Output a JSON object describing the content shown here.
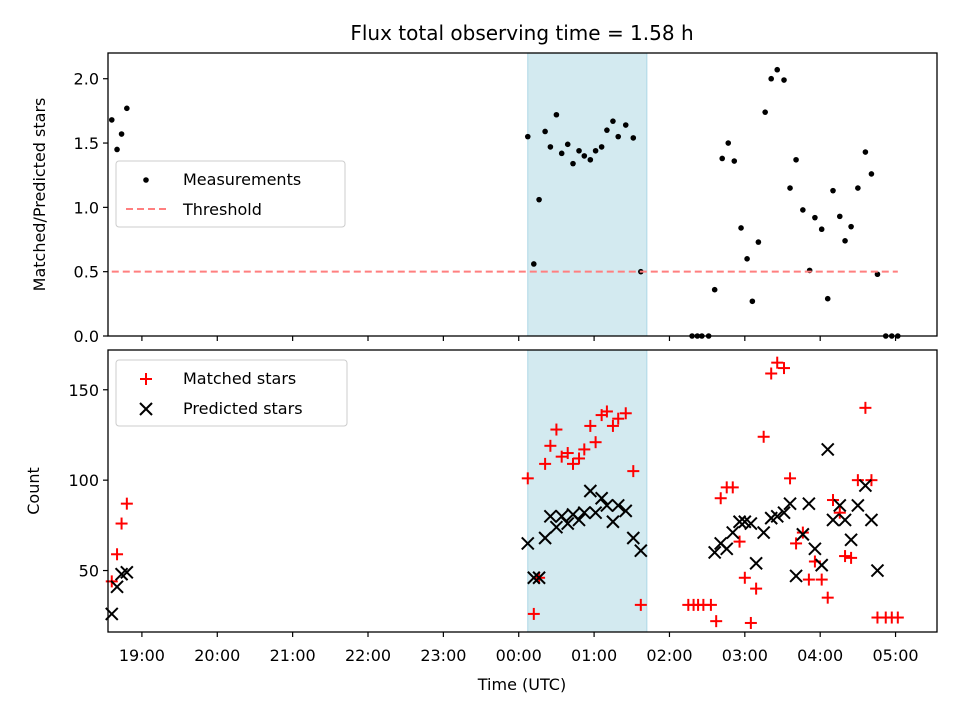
{
  "chart_data": [
    {
      "type": "scatter",
      "title": "Flux total observing time = 1.58 h",
      "xlabel": "",
      "ylabel": "Matched/Predicted stars",
      "ylim": [
        0,
        2.2
      ],
      "yticks": [
        0.0,
        0.5,
        1.0,
        1.5,
        2.0
      ],
      "ytick_labels": [
        "0.0",
        "0.5",
        "1.0",
        "1.5",
        "2.0"
      ],
      "x_unit": "hours since 00:00 UTC",
      "xlim": [
        -5.45,
        5.55
      ],
      "shaded_interval": [
        0.12,
        1.7
      ],
      "shaded_color": "#d3eaf0",
      "legend": {
        "position": "center-left",
        "entries": [
          "Measurements",
          "Threshold"
        ]
      },
      "series": [
        {
          "name": "Measurements",
          "style": "point",
          "color": "#000000",
          "points": [
            [
              -5.4,
              1.68
            ],
            [
              -5.33,
              1.45
            ],
            [
              -5.27,
              1.57
            ],
            [
              -5.2,
              1.77
            ],
            [
              0.12,
              1.55
            ],
            [
              0.2,
              0.56
            ],
            [
              0.27,
              1.06
            ],
            [
              0.35,
              1.59
            ],
            [
              0.42,
              1.47
            ],
            [
              0.5,
              1.72
            ],
            [
              0.57,
              1.42
            ],
            [
              0.65,
              1.49
            ],
            [
              0.72,
              1.34
            ],
            [
              0.8,
              1.44
            ],
            [
              0.87,
              1.4
            ],
            [
              0.95,
              1.37
            ],
            [
              1.02,
              1.44
            ],
            [
              1.1,
              1.47
            ],
            [
              1.17,
              1.6
            ],
            [
              1.25,
              1.67
            ],
            [
              1.32,
              1.55
            ],
            [
              1.42,
              1.64
            ],
            [
              1.52,
              1.54
            ],
            [
              1.62,
              0.5
            ],
            [
              2.3,
              0.0
            ],
            [
              2.37,
              0.0
            ],
            [
              2.43,
              0.0
            ],
            [
              2.52,
              0.0
            ],
            [
              2.6,
              0.36
            ],
            [
              2.7,
              1.38
            ],
            [
              2.78,
              1.5
            ],
            [
              2.86,
              1.36
            ],
            [
              2.95,
              0.84
            ],
            [
              3.03,
              0.6
            ],
            [
              3.1,
              0.27
            ],
            [
              3.18,
              0.73
            ],
            [
              3.27,
              1.74
            ],
            [
              3.35,
              2.0
            ],
            [
              3.43,
              2.07
            ],
            [
              3.52,
              1.99
            ],
            [
              3.6,
              1.15
            ],
            [
              3.68,
              1.37
            ],
            [
              3.77,
              0.98
            ],
            [
              3.86,
              0.51
            ],
            [
              3.93,
              0.92
            ],
            [
              4.02,
              0.83
            ],
            [
              4.1,
              0.29
            ],
            [
              4.17,
              1.13
            ],
            [
              4.26,
              0.93
            ],
            [
              4.33,
              0.74
            ],
            [
              4.41,
              0.85
            ],
            [
              4.5,
              1.15
            ],
            [
              4.6,
              1.43
            ],
            [
              4.68,
              1.26
            ],
            [
              4.76,
              0.48
            ],
            [
              4.87,
              0.0
            ],
            [
              4.95,
              0.0
            ],
            [
              5.03,
              0.0
            ]
          ]
        },
        {
          "name": "Threshold",
          "style": "dashed-line",
          "color": "#ff7f7f",
          "x": [
            -5.4,
            5.03
          ],
          "y": [
            0.5,
            0.5
          ]
        }
      ]
    },
    {
      "type": "scatter",
      "xlabel": "Time (UTC)",
      "ylabel": "Count",
      "ylim": [
        16,
        172
      ],
      "yticks": [
        50,
        100,
        150
      ],
      "ytick_labels": [
        "50",
        "100",
        "150"
      ],
      "x_unit": "hours since 00:00 UTC",
      "xlim": [
        -5.45,
        5.55
      ],
      "xticks": [
        -5,
        -4,
        -3,
        -2,
        -1,
        0,
        1,
        2,
        3,
        4,
        5
      ],
      "xtick_labels": [
        "19:00",
        "20:00",
        "21:00",
        "22:00",
        "23:00",
        "00:00",
        "01:00",
        "02:00",
        "03:00",
        "04:00",
        "05:00"
      ],
      "shaded_interval": [
        0.12,
        1.7
      ],
      "shaded_color": "#d3eaf0",
      "legend": {
        "position": "top-left",
        "entries": [
          "Matched stars",
          "Predicted stars"
        ]
      },
      "series": [
        {
          "name": "Matched stars",
          "style": "plus",
          "color": "#ff0000",
          "points": [
            [
              -5.4,
              44
            ],
            [
              -5.33,
              59
            ],
            [
              -5.27,
              76
            ],
            [
              -5.2,
              87
            ],
            [
              0.12,
              101
            ],
            [
              0.2,
              26
            ],
            [
              0.27,
              46
            ],
            [
              0.35,
              109
            ],
            [
              0.42,
              119
            ],
            [
              0.5,
              128
            ],
            [
              0.57,
              113
            ],
            [
              0.65,
              115
            ],
            [
              0.72,
              109
            ],
            [
              0.8,
              112
            ],
            [
              0.87,
              117
            ],
            [
              0.95,
              130
            ],
            [
              1.02,
              121
            ],
            [
              1.1,
              136
            ],
            [
              1.17,
              138
            ],
            [
              1.25,
              130
            ],
            [
              1.32,
              134
            ],
            [
              1.42,
              137
            ],
            [
              1.52,
              105
            ],
            [
              1.62,
              31
            ],
            [
              2.25,
              31
            ],
            [
              2.32,
              31
            ],
            [
              2.38,
              31
            ],
            [
              2.45,
              31
            ],
            [
              2.55,
              31
            ],
            [
              2.62,
              22
            ],
            [
              2.68,
              90
            ],
            [
              2.76,
              96
            ],
            [
              2.84,
              96
            ],
            [
              2.93,
              66
            ],
            [
              3.0,
              46
            ],
            [
              3.08,
              21
            ],
            [
              3.15,
              40
            ],
            [
              3.25,
              124
            ],
            [
              3.35,
              159
            ],
            [
              3.43,
              165
            ],
            [
              3.52,
              162
            ],
            [
              3.6,
              101
            ],
            [
              3.68,
              65
            ],
            [
              3.77,
              71
            ],
            [
              3.85,
              45
            ],
            [
              3.93,
              55
            ],
            [
              4.02,
              45
            ],
            [
              4.1,
              35
            ],
            [
              4.17,
              89
            ],
            [
              4.26,
              82
            ],
            [
              4.33,
              58
            ],
            [
              4.41,
              57
            ],
            [
              4.5,
              100
            ],
            [
              4.6,
              140
            ],
            [
              4.68,
              100
            ],
            [
              4.76,
              24
            ],
            [
              4.87,
              24
            ],
            [
              4.95,
              24
            ],
            [
              5.03,
              24
            ]
          ]
        },
        {
          "name": "Predicted stars",
          "style": "x",
          "color": "#000000",
          "points": [
            [
              -5.4,
              26
            ],
            [
              -5.33,
              41
            ],
            [
              -5.27,
              48
            ],
            [
              -5.2,
              49
            ],
            [
              0.12,
              65
            ],
            [
              0.2,
              46
            ],
            [
              0.27,
              46
            ],
            [
              0.35,
              68
            ],
            [
              0.42,
              80
            ],
            [
              0.5,
              74
            ],
            [
              0.57,
              80
            ],
            [
              0.65,
              76
            ],
            [
              0.72,
              81
            ],
            [
              0.8,
              78
            ],
            [
              0.87,
              82
            ],
            [
              0.95,
              94
            ],
            [
              1.02,
              82
            ],
            [
              1.1,
              90
            ],
            [
              1.17,
              86
            ],
            [
              1.25,
              77
            ],
            [
              1.32,
              86
            ],
            [
              1.42,
              83
            ],
            [
              1.52,
              68
            ],
            [
              1.62,
              61
            ],
            [
              2.6,
              60
            ],
            [
              2.68,
              65
            ],
            [
              2.76,
              62
            ],
            [
              2.84,
              71
            ],
            [
              2.93,
              77
            ],
            [
              3.0,
              77
            ],
            [
              3.08,
              76
            ],
            [
              3.15,
              54
            ],
            [
              3.25,
              71
            ],
            [
              3.35,
              79
            ],
            [
              3.43,
              80
            ],
            [
              3.52,
              82
            ],
            [
              3.6,
              87
            ],
            [
              3.68,
              47
            ],
            [
              3.77,
              70
            ],
            [
              3.85,
              87
            ],
            [
              3.93,
              62
            ],
            [
              4.02,
              53
            ],
            [
              4.1,
              117
            ],
            [
              4.17,
              78
            ],
            [
              4.26,
              86
            ],
            [
              4.33,
              78
            ],
            [
              4.41,
              67
            ],
            [
              4.5,
              86
            ],
            [
              4.6,
              97
            ],
            [
              4.68,
              78
            ],
            [
              4.76,
              50
            ]
          ]
        }
      ]
    }
  ]
}
